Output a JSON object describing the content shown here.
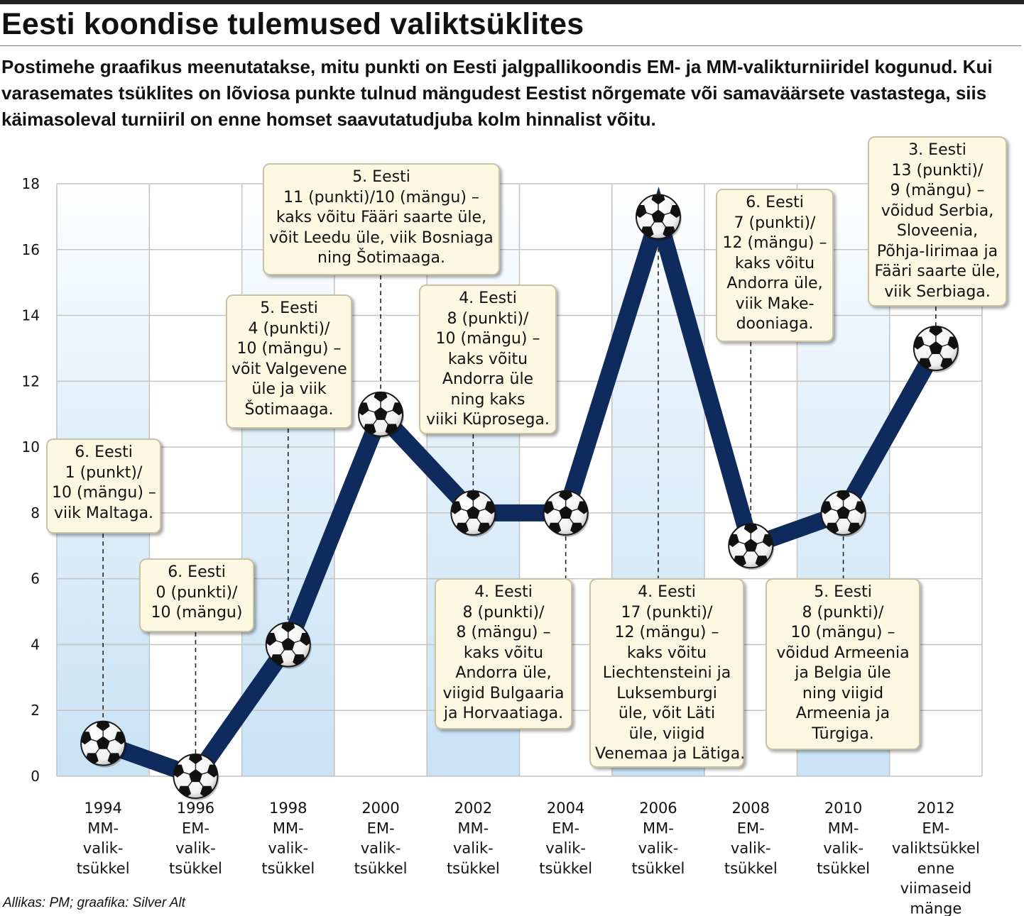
{
  "title": "Eesti koondise tulemused valiktsüklites",
  "subtitle": "Postimehe graafikus meenutatakse, mitu punkti on Eesti jalgpallikoondis EM- ja MM-valikturniiridel kogunud. Kui varasemates tsüklites on lõviosa punkte tulnud mängudest Eestist nõrgemate või samaväärsete vastastega, siis käimasoleval turniiril on enne homset saavutatudjuba kolm hinnalist võitu.",
  "source": "Allikas: PM; graafika: Silver Alt",
  "colors": {
    "line": "#0f2a5c",
    "stripe": "#cfe6f5",
    "grid": "#c4c4c4",
    "callout_bg": "#fdf8e2"
  },
  "chart_data": {
    "type": "line",
    "ylim": [
      0,
      18
    ],
    "yticks": [
      "0",
      "2",
      "4",
      "6",
      "8",
      "10",
      "12",
      "14",
      "16",
      "18"
    ],
    "categories": [
      [
        "1994",
        "MM-",
        "valik-",
        "tsükkel"
      ],
      [
        "1996",
        "EM-",
        "valik-",
        "tsükkel"
      ],
      [
        "1998",
        "MM-",
        "valik-",
        "tsükkel"
      ],
      [
        "2000",
        "EM-",
        "valik-",
        "tsükkel"
      ],
      [
        "2002",
        "MM-",
        "valik-",
        "tsükkel"
      ],
      [
        "2004",
        "EM-",
        "valik-",
        "tsükkel"
      ],
      [
        "2006",
        "MM-",
        "valik-",
        "tsükkel"
      ],
      [
        "2008",
        "EM-",
        "valik-",
        "tsükkel"
      ],
      [
        "2010",
        "MM-",
        "valik-",
        "tsükkel"
      ],
      [
        "2012",
        "EM-",
        "valiktsükkel",
        "enne",
        "viimaseid",
        "mänge"
      ]
    ],
    "values": [
      1,
      0,
      4,
      11,
      8,
      8,
      17,
      7,
      8,
      13
    ],
    "annotations": [
      [
        "6. Eesti",
        "1 (punkt)/",
        "10 (mängu) –",
        "viik Maltaga."
      ],
      [
        "6. Eesti",
        "0 (punkti)/",
        "10 (mängu)"
      ],
      [
        "5. Eesti",
        "4 (punkti)/",
        "10 (mängu) –",
        "võit Valgevene",
        "üle ja viik",
        "Šotimaaga."
      ],
      [
        "5. Eesti",
        "11 (punkti)/10 (mängu) –",
        "kaks võitu Fääri saarte üle,",
        "võit Leedu üle, viik Bosniaga",
        "ning Šotimaaga."
      ],
      [
        "4. Eesti",
        "8 (punkti)/",
        "10 (mängu) –",
        "kaks võitu",
        "Andorra üle",
        "ning kaks",
        "viiki Küprosega."
      ],
      [
        "4. Eesti",
        "8 (punkti)/",
        "8 (mängu) –",
        "kaks võitu",
        "Andorra üle,",
        "viigid Bulgaaria",
        "ja Horvaatiaga."
      ],
      [
        "4. Eesti",
        "17 (punkti)/",
        "12 (mängu) –",
        "kaks võitu",
        "Liechtensteini ja",
        "Luksemburgi",
        "üle, võit Läti",
        "üle, viigid",
        "Venemaa ja Lätiga."
      ],
      [
        "6. Eesti",
        "7 (punkti)/",
        "12 (mängu) –",
        "kaks võitu",
        "Andorra üle,",
        "viik Make-",
        "dooniaga."
      ],
      [
        "5. Eesti",
        "8 (punkti)/",
        "10 (mängu) –",
        "võidud Armeenia",
        "ja Belgia üle",
        "ning viigid",
        "Armeenia ja",
        "Türgiga."
      ],
      [
        "3. Eesti",
        "13 (punkti)/",
        "9 (mängu) –",
        "võidud Serbia,",
        "Sloveenia,",
        "Põhja-Iirimaa ja",
        "Fääri saarte üle,",
        "viik Serbiaga."
      ]
    ]
  }
}
